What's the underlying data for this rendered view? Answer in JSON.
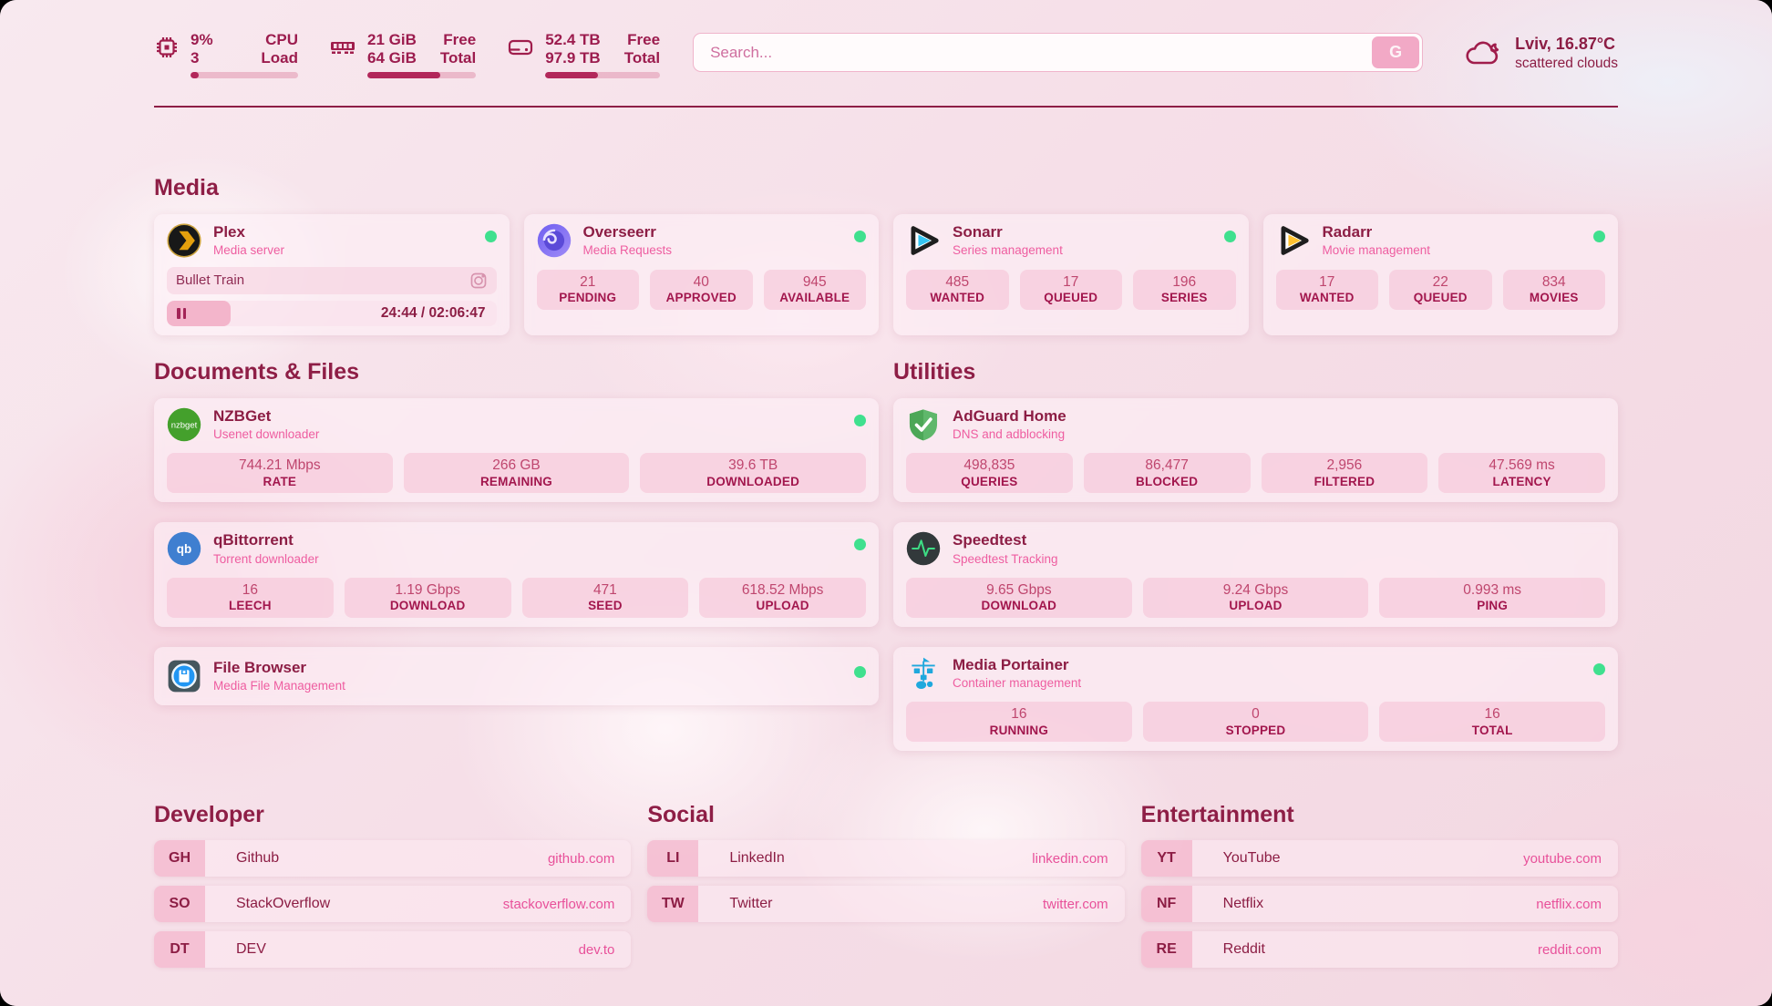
{
  "header": {
    "widgets": [
      {
        "icon": "cpu-icon",
        "values": [
          "9%",
          "3"
        ],
        "labels": [
          "CPU",
          "Load"
        ],
        "progress_pct": 8
      },
      {
        "icon": "ram-icon",
        "values": [
          "21 GiB",
          "64 GiB"
        ],
        "labels": [
          "Free",
          "Total"
        ],
        "progress_pct": 67
      },
      {
        "icon": "disk-icon",
        "values": [
          "52.4 TB",
          "97.9 TB"
        ],
        "labels": [
          "Free",
          "Total"
        ],
        "progress_pct": 46
      }
    ],
    "search": {
      "placeholder": "Search...",
      "button_label": "G"
    },
    "weather": {
      "icon": "cloud-icon",
      "location": "Lviv, 16.87°C",
      "condition": "scattered clouds"
    }
  },
  "media": {
    "title": "Media",
    "plex": {
      "icon": "plex-icon",
      "title": "Plex",
      "subtitle": "Media server",
      "online": true,
      "now_playing": "Bullet Train",
      "progress_pct": 19.5,
      "time": "24:44 / 02:06:47"
    },
    "overseerr": {
      "icon": "overseerr-icon",
      "title": "Overseerr",
      "subtitle": "Media Requests",
      "online": true,
      "stats": [
        {
          "value": "21",
          "label": "PENDING"
        },
        {
          "value": "40",
          "label": "APPROVED"
        },
        {
          "value": "945",
          "label": "AVAILABLE"
        }
      ]
    },
    "sonarr": {
      "icon": "sonarr-icon",
      "title": "Sonarr",
      "subtitle": "Series management",
      "online": true,
      "stats": [
        {
          "value": "485",
          "label": "WANTED"
        },
        {
          "value": "17",
          "label": "QUEUED"
        },
        {
          "value": "196",
          "label": "SERIES"
        }
      ]
    },
    "radarr": {
      "icon": "radarr-icon",
      "title": "Radarr",
      "subtitle": "Movie management",
      "online": true,
      "stats": [
        {
          "value": "17",
          "label": "WANTED"
        },
        {
          "value": "22",
          "label": "QUEUED"
        },
        {
          "value": "834",
          "label": "MOVIES"
        }
      ]
    }
  },
  "documents": {
    "title": "Documents & Files",
    "nzbget": {
      "icon": "nzbget-icon",
      "title": "NZBGet",
      "subtitle": "Usenet downloader",
      "online": true,
      "stats": [
        {
          "value": "744.21 Mbps",
          "label": "RATE"
        },
        {
          "value": "266 GB",
          "label": "REMAINING"
        },
        {
          "value": "39.6 TB",
          "label": "DOWNLOADED"
        }
      ]
    },
    "qbittorrent": {
      "icon": "qbittorrent-icon",
      "title": "qBittorrent",
      "subtitle": "Torrent downloader",
      "online": true,
      "stats": [
        {
          "value": "16",
          "label": "LEECH"
        },
        {
          "value": "1.19 Gbps",
          "label": "DOWNLOAD"
        },
        {
          "value": "471",
          "label": "SEED"
        },
        {
          "value": "618.52 Mbps",
          "label": "UPLOAD"
        }
      ]
    },
    "filebrowser": {
      "icon": "filebrowser-icon",
      "title": "File Browser",
      "subtitle": "Media File Management",
      "online": true
    }
  },
  "utilities": {
    "title": "Utilities",
    "adguard": {
      "icon": "adguard-icon",
      "title": "AdGuard Home",
      "subtitle": "DNS and adblocking",
      "stats": [
        {
          "value": "498,835",
          "label": "QUERIES"
        },
        {
          "value": "86,477",
          "label": "BLOCKED"
        },
        {
          "value": "2,956",
          "label": "FILTERED"
        },
        {
          "value": "47.569 ms",
          "label": "LATENCY"
        }
      ]
    },
    "speedtest": {
      "icon": "speedtest-icon",
      "title": "Speedtest",
      "subtitle": "Speedtest Tracking",
      "stats": [
        {
          "value": "9.65 Gbps",
          "label": "DOWNLOAD"
        },
        {
          "value": "9.24 Gbps",
          "label": "UPLOAD"
        },
        {
          "value": "0.993 ms",
          "label": "PING"
        }
      ]
    },
    "portainer": {
      "icon": "portainer-icon",
      "title": "Media Portainer",
      "subtitle": "Container management",
      "online": true,
      "stats": [
        {
          "value": "16",
          "label": "RUNNING"
        },
        {
          "value": "0",
          "label": "STOPPED"
        },
        {
          "value": "16",
          "label": "TOTAL"
        }
      ]
    }
  },
  "bookmarks": {
    "developer": {
      "title": "Developer",
      "items": [
        {
          "abbr": "GH",
          "name": "Github",
          "url": "github.com"
        },
        {
          "abbr": "SO",
          "name": "StackOverflow",
          "url": "stackoverflow.com"
        },
        {
          "abbr": "DT",
          "name": "DEV",
          "url": "dev.to"
        }
      ]
    },
    "social": {
      "title": "Social",
      "items": [
        {
          "abbr": "LI",
          "name": "LinkedIn",
          "url": "linkedin.com"
        },
        {
          "abbr": "TW",
          "name": "Twitter",
          "url": "twitter.com"
        }
      ]
    },
    "entertainment": {
      "title": "Entertainment",
      "items": [
        {
          "abbr": "YT",
          "name": "YouTube",
          "url": "youtube.com"
        },
        {
          "abbr": "NF",
          "name": "Netflix",
          "url": "netflix.com"
        },
        {
          "abbr": "RE",
          "name": "Reddit",
          "url": "reddit.com"
        }
      ]
    }
  },
  "colors": {
    "accent": "#9c1c4e",
    "heading": "#8e1e46",
    "online_dot": "#3fe08e",
    "stat_label": "#a2164d",
    "link_pink": "#e8519a"
  }
}
